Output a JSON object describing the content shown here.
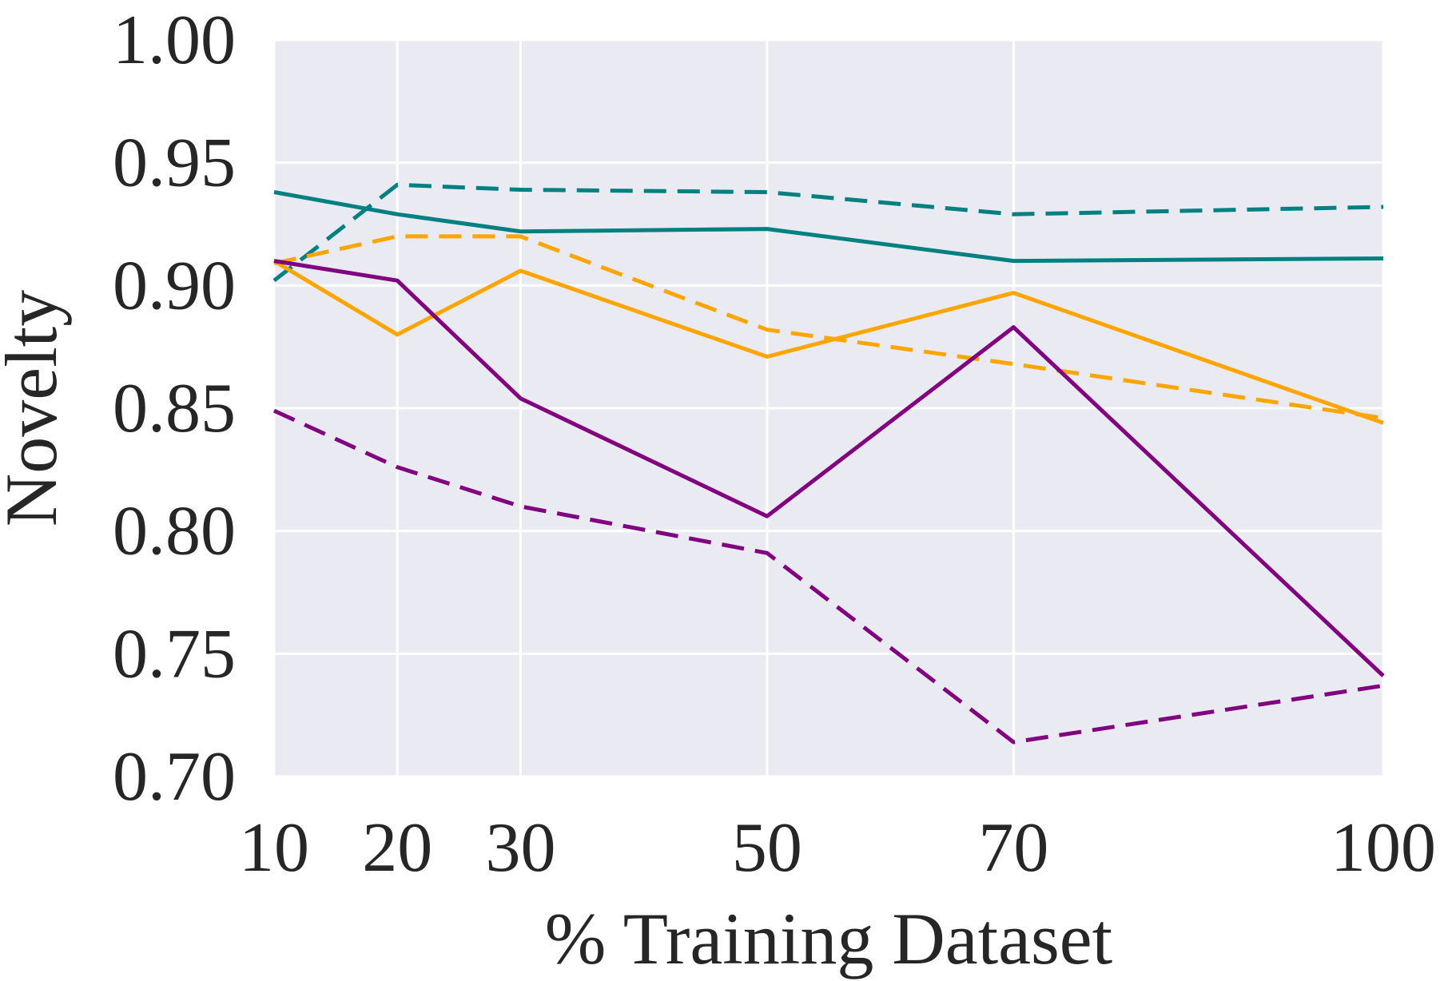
{
  "chart_data": {
    "type": "line",
    "title": "",
    "xlabel": "% Training Dataset",
    "ylabel": "Novelty",
    "x": [
      10,
      20,
      30,
      50,
      70,
      100
    ],
    "xtick_labels": [
      "10",
      "20",
      "30",
      "50",
      "70",
      "100"
    ],
    "xlim": [
      10,
      100
    ],
    "ylim": [
      0.7,
      1.0
    ],
    "ytick_values": [
      0.7,
      0.75,
      0.8,
      0.85,
      0.9,
      0.95,
      1.0
    ],
    "ytick_labels": [
      "0.70",
      "0.75",
      "0.80",
      "0.85",
      "0.90",
      "0.95",
      "1.00"
    ],
    "grid": true,
    "background": "#eaeaf2",
    "grid_color": "#ffffff",
    "series": [
      {
        "name": "teal-solid",
        "color": "#008080",
        "style": "solid",
        "values": [
          0.938,
          0.929,
          0.922,
          0.923,
          0.91,
          0.911
        ]
      },
      {
        "name": "teal-dashed",
        "color": "#008080",
        "style": "dashed",
        "values": [
          0.902,
          0.941,
          0.939,
          0.938,
          0.929,
          0.932
        ]
      },
      {
        "name": "orange-solid",
        "color": "#ffa500",
        "style": "solid",
        "values": [
          0.91,
          0.88,
          0.906,
          0.871,
          0.897,
          0.844
        ]
      },
      {
        "name": "orange-dashed",
        "color": "#ffa500",
        "style": "dashed",
        "values": [
          0.909,
          0.92,
          0.92,
          0.882,
          0.868,
          0.846
        ]
      },
      {
        "name": "purple-solid",
        "color": "#800080",
        "style": "solid",
        "values": [
          0.91,
          0.902,
          0.854,
          0.806,
          0.883,
          0.741
        ]
      },
      {
        "name": "purple-dashed",
        "color": "#800080",
        "style": "dashed",
        "values": [
          0.849,
          0.826,
          0.81,
          0.791,
          0.714,
          0.737
        ]
      }
    ]
  }
}
